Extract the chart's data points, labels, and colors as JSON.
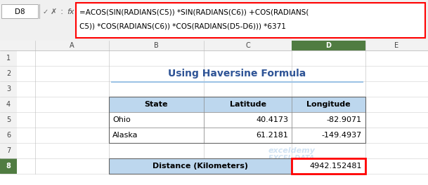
{
  "title": "Using Haversine Formula",
  "title_color": "#2F5496",
  "formula_cell_ref": "D8",
  "formula_line1": "=ACOS(SIN(RADIANS(C5)) *SIN(RADIANS(C6)) +COS(RADIANS(",
  "formula_line2": "C5)) *COS(RADIANS(C6)) *COS(RADIANS(D5-D6))) *6371",
  "col_headers": [
    "State",
    "Latitude",
    "Longitude"
  ],
  "row5": [
    "Ohio",
    "40.4173",
    "-82.9071"
  ],
  "row6": [
    "Alaska",
    "61.2181",
    "-149.4937"
  ],
  "distance_label": "Distance (Kilometers)",
  "distance_value": "4942.152481",
  "header_bg": "#BDD7EE",
  "distance_label_bg": "#BDD7EE",
  "distance_border_color": "#FF0000",
  "formula_bar_border": "#FF0000",
  "col_letters": [
    "A",
    "B",
    "C",
    "D",
    "E"
  ],
  "row_numbers": [
    "1",
    "2",
    "3",
    "4",
    "5",
    "6",
    "7",
    "8"
  ],
  "toolbar_bg": "#F0F0F0",
  "sheet_bg": "#FFFFFF",
  "row_col_header_bg": "#F2F2F2",
  "selected_col_bg": "#507C41",
  "selected_row_bg": "#507C41",
  "title_underline_color": "#9DC3E6",
  "watermark_text1": "exceldemy",
  "watermark_text2": "EXCEL DATA",
  "watermark_color": "#BDD7EE"
}
